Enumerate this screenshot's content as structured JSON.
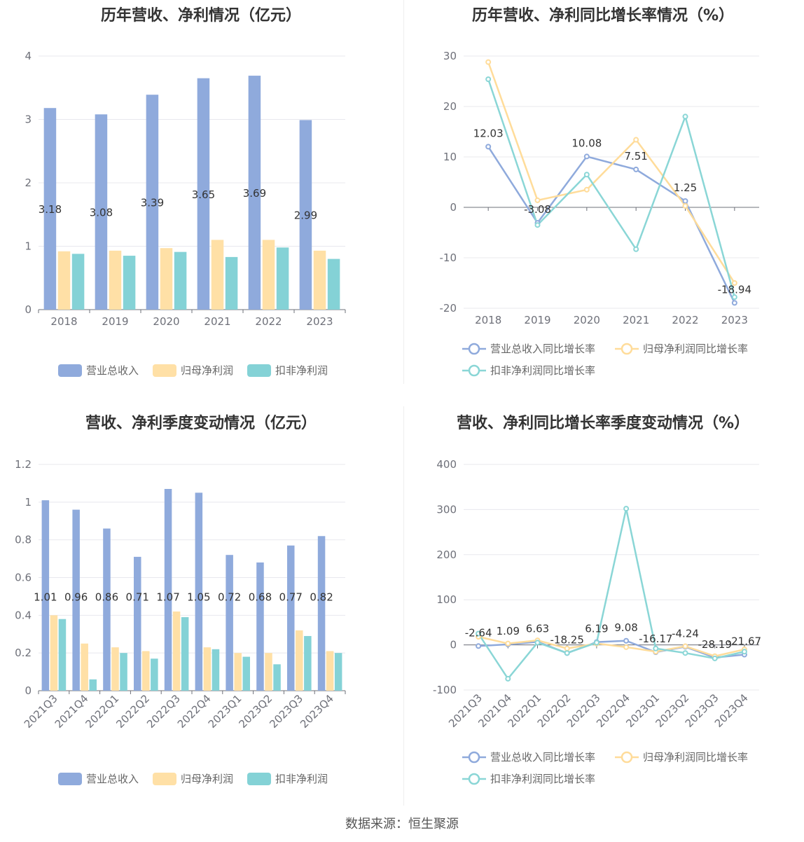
{
  "source_text": "数据来源：恒生聚源",
  "colors": {
    "revenue": "#8faadc",
    "net_profit": "#ffe0a6",
    "deducted_profit": "#84d2d6",
    "revenue_line": "#8faadc",
    "net_profit_line": "#ffdc9a",
    "deducted_profit_line": "#8ad6d6"
  },
  "chart_data": [
    {
      "type": "bar",
      "title": "历年营收、净利情况（亿元）",
      "categories": [
        "2018",
        "2019",
        "2020",
        "2021",
        "2022",
        "2023"
      ],
      "ylim": [
        0,
        4
      ],
      "yticks": [
        0,
        1,
        2,
        3,
        4
      ],
      "grid": true,
      "legend_position": "bottom",
      "series": [
        {
          "name": "营业总收入",
          "values": [
            3.18,
            3.08,
            3.39,
            3.65,
            3.69,
            2.99
          ],
          "labels": [
            "3.18",
            "3.08",
            "3.39",
            "3.65",
            "3.69",
            "2.99"
          ]
        },
        {
          "name": "归母净利润",
          "values": [
            0.92,
            0.93,
            0.97,
            1.1,
            1.1,
            0.93
          ]
        },
        {
          "name": "扣非净利润",
          "values": [
            0.88,
            0.85,
            0.91,
            0.83,
            0.98,
            0.8
          ]
        }
      ]
    },
    {
      "type": "line",
      "title": "历年营收、净利同比增长率情况（%）",
      "categories": [
        "2018",
        "2019",
        "2020",
        "2021",
        "2022",
        "2023"
      ],
      "ylim": [
        -20,
        30
      ],
      "yticks": [
        -20,
        -10,
        0,
        10,
        20,
        30
      ],
      "grid": true,
      "legend_position": "bottom",
      "series": [
        {
          "name": "营业总收入同比增长率",
          "values": [
            12.03,
            -3.08,
            10.08,
            7.51,
            1.25,
            -18.94
          ],
          "labels": [
            "12.03",
            "-3.08",
            "10.08",
            "7.51",
            "1.25",
            "-18.94"
          ]
        },
        {
          "name": "归母净利润同比增长率",
          "values": [
            28.8,
            1.4,
            3.5,
            13.4,
            0.3,
            -15.0
          ]
        },
        {
          "name": "扣非净利润同比增长率",
          "values": [
            25.4,
            -3.5,
            6.5,
            -8.3,
            18.0,
            -17.8
          ]
        }
      ]
    },
    {
      "type": "bar",
      "title": "营收、净利季度变动情况（亿元）",
      "categories": [
        "2021Q3",
        "2021Q4",
        "2022Q1",
        "2022Q2",
        "2022Q3",
        "2022Q4",
        "2023Q1",
        "2023Q2",
        "2023Q3",
        "2023Q4"
      ],
      "ylim": [
        0,
        1.2
      ],
      "yticks": [
        0,
        0.2,
        0.4,
        0.6,
        0.8,
        1,
        1.2
      ],
      "grid": true,
      "legend_position": "bottom",
      "series": [
        {
          "name": "营业总收入",
          "values": [
            1.01,
            0.96,
            0.86,
            0.71,
            1.07,
            1.05,
            0.72,
            0.68,
            0.77,
            0.82
          ],
          "labels": [
            "1.01",
            "0.96",
            "0.86",
            "0.71",
            "1.07",
            "1.05",
            "0.72",
            "0.68",
            "0.77",
            "0.82"
          ]
        },
        {
          "name": "归母净利润",
          "values": [
            0.4,
            0.25,
            0.23,
            0.21,
            0.42,
            0.23,
            0.2,
            0.2,
            0.32,
            0.21
          ]
        },
        {
          "name": "扣非净利润",
          "values": [
            0.38,
            0.06,
            0.2,
            0.17,
            0.39,
            0.22,
            0.18,
            0.14,
            0.29,
            0.2
          ]
        }
      ]
    },
    {
      "type": "line",
      "title": "营收、净利同比增长率季度变动情况（%）",
      "categories": [
        "2021Q3",
        "2021Q4",
        "2022Q1",
        "2022Q2",
        "2022Q3",
        "2022Q4",
        "2023Q1",
        "2023Q2",
        "2023Q3",
        "2023Q4"
      ],
      "ylim": [
        -100,
        400
      ],
      "yticks": [
        -100,
        0,
        100,
        200,
        300,
        400
      ],
      "grid": true,
      "legend_position": "bottom",
      "series": [
        {
          "name": "营业总收入同比增长率",
          "values": [
            -2.64,
            1.09,
            6.63,
            -18.25,
            6.19,
            9.08,
            -16.17,
            -4.24,
            -28.19,
            -21.67
          ],
          "labels": [
            "-2.64",
            "1.09",
            "6.63",
            "-18.25",
            "6.19",
            "9.08",
            "-16.17",
            "-4.24",
            "-28.19",
            "-21.67"
          ]
        },
        {
          "name": "归母净利润同比增长率",
          "values": [
            18,
            3,
            10,
            -8,
            3,
            -5,
            -15,
            -3,
            -25,
            -10
          ]
        },
        {
          "name": "扣非净利润同比增长率",
          "values": [
            25,
            -75,
            5,
            -18,
            5,
            302,
            -8,
            -18,
            -30,
            -15
          ]
        }
      ]
    }
  ]
}
